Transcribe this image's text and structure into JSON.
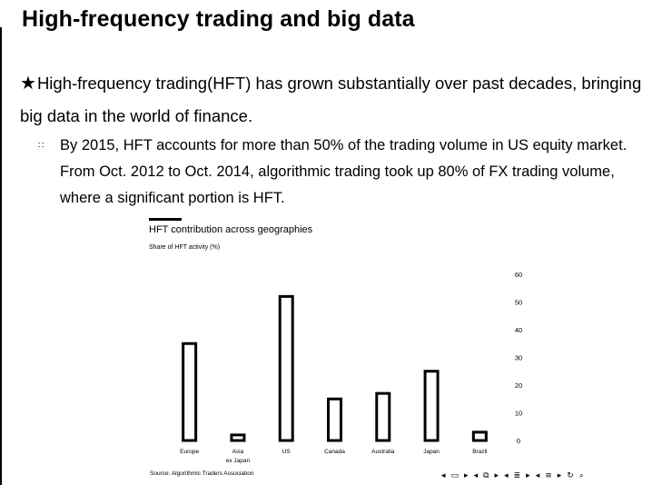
{
  "slide": {
    "title": "High-frequency trading and big data",
    "bullet_star": "★",
    "bullet_main": "High-frequency trading(HFT) has grown substantially over past decades, bringing big data in the world of finance.",
    "sub_marker": "∷",
    "bullet_sub": "By 2015, HFT accounts for more than 50% of the trading volume in US equity market. From Oct. 2012 to Oct. 2014, algorithmic trading took up 80% of FX trading volume, where a significant portion is HFT."
  },
  "chart_data": {
    "type": "bar",
    "title": "HFT contribution across geographies",
    "subtitle": "Share of HFT activity (%)",
    "source": "Source: Algorithmic Traders Association",
    "categories": [
      "Europe",
      "Asia ex Japan",
      "US",
      "Canada",
      "Australia",
      "Japan",
      "Brazil"
    ],
    "category_lines": [
      [
        "Europe"
      ],
      [
        "Asia",
        "ex Japan"
      ],
      [
        "US"
      ],
      [
        "Canada"
      ],
      [
        "Australia"
      ],
      [
        "Japan"
      ],
      [
        "Brazil"
      ]
    ],
    "values": [
      35,
      2,
      52,
      15,
      17,
      25,
      3
    ],
    "ylim": [
      0,
      60
    ],
    "yticks": [
      0,
      10,
      20,
      30,
      40,
      50,
      60
    ],
    "y_axis_side": "right",
    "grid": false,
    "bar_fill": "#ffffff",
    "bar_stroke": "#000000"
  },
  "navigation": {
    "icons": [
      "prev-frame-icon",
      "next-frame-icon",
      "prev-subsection-icon",
      "next-subsection-icon",
      "prev-section-icon",
      "next-section-icon",
      "prev-slide-icon",
      "next-slide-icon",
      "toc-icon",
      "search-icon"
    ]
  }
}
